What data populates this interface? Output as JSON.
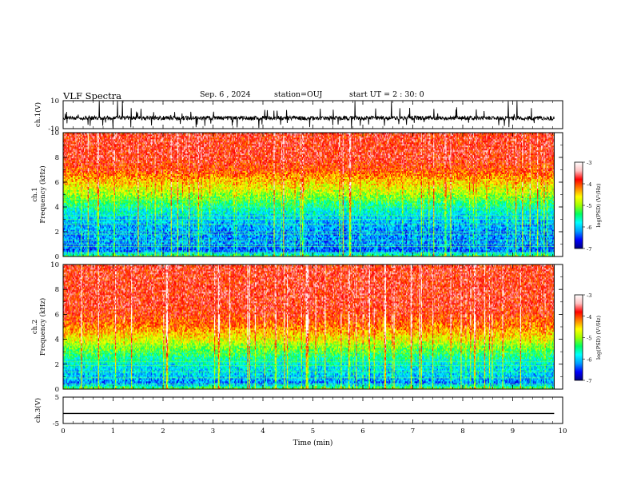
{
  "header": {
    "title": "VLF Spectra",
    "date": "Sep. 6 , 2024",
    "station": "station=OUJ",
    "start_ut": "start UT = 2 : 30: 0"
  },
  "colorbar": {
    "label": "log(PSD) (V²/Hz)",
    "ticks": [
      "-3",
      "-4",
      "-5",
      "-6",
      "-7"
    ],
    "range": [
      -7,
      -3
    ],
    "colors": [
      "#000080",
      "#0000ff",
      "#00a0ff",
      "#00ffff",
      "#00ff60",
      "#a0ff00",
      "#ffff00",
      "#ff8000",
      "#ff0000",
      "#ffc0c0",
      "#ffffff"
    ]
  },
  "chart_data": [
    {
      "type": "line",
      "panel": "ch1-waveform",
      "ylabel": "ch.1(V)",
      "ylim": [
        -10,
        10
      ],
      "y_ticks": [
        "10",
        "-10"
      ],
      "baseline": -2.4,
      "color": "#000000"
    },
    {
      "type": "heatmap",
      "panel": "ch1-spectrogram",
      "ylabel": "ch.1 Frequency (kHz)",
      "ylim": [
        0,
        10
      ],
      "y_ticks": [
        "0",
        "2",
        "4",
        "6",
        "8",
        "10"
      ],
      "xlim": [
        0,
        9.83
      ],
      "z_label": "log(PSD) (V²/Hz)",
      "z_range": [
        -7,
        -3
      ],
      "frequency_profile_khz": [
        0,
        0.5,
        1,
        2,
        3,
        4,
        5,
        6,
        7,
        8,
        10
      ],
      "frequency_profile_logpsd": [
        -5.2,
        -6.4,
        -6.2,
        -6.2,
        -6.0,
        -5.6,
        -5.0,
        -4.5,
        -4.0,
        -3.8,
        -3.8
      ],
      "horizontal_lines_khz": [
        0.3,
        0.8,
        1.0,
        1.3,
        1.8,
        2.0,
        2.6,
        3.0,
        3.3,
        4.0,
        4.6
      ]
    },
    {
      "type": "heatmap",
      "panel": "ch2-spectrogram",
      "ylabel": "ch.2 Frequency (kHz)",
      "ylim": [
        0,
        10
      ],
      "y_ticks": [
        "0",
        "2",
        "4",
        "6",
        "8",
        "10"
      ],
      "xlim": [
        0,
        9.83
      ],
      "z_label": "log(PSD) (V²/Hz)",
      "z_range": [
        -7,
        -3
      ],
      "frequency_profile_khz": [
        0,
        0.5,
        1,
        2,
        3,
        4,
        5,
        6,
        7,
        8,
        10
      ],
      "frequency_profile_logpsd": [
        -5.0,
        -6.3,
        -6.0,
        -5.8,
        -5.3,
        -4.7,
        -4.2,
        -3.9,
        -3.8,
        -3.8,
        -3.8
      ],
      "horizontal_lines_khz": [
        0.4,
        0.9,
        1.4,
        1.9,
        2.2,
        2.9,
        3.5
      ]
    },
    {
      "type": "line",
      "panel": "ch3-waveform",
      "ylabel": "ch.3(V)",
      "ylim": [
        -5,
        5
      ],
      "y_ticks": [
        "5",
        "-5"
      ],
      "values": [
        -1.2,
        -1.2
      ],
      "x": [
        0,
        9.83
      ],
      "color": "#000000"
    }
  ],
  "xaxis": {
    "label": "Time (min)",
    "xlim": [
      0,
      10
    ],
    "ticks": [
      "0",
      "1",
      "2",
      "3",
      "4",
      "5",
      "6",
      "7",
      "8",
      "9",
      "10"
    ]
  }
}
